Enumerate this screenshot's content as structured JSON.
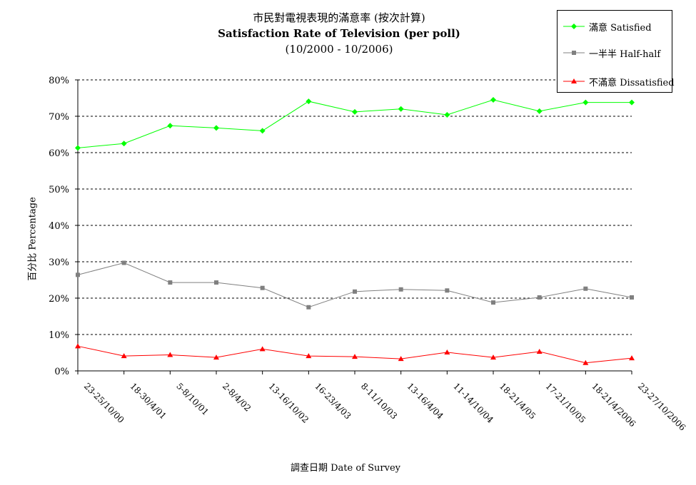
{
  "chart_data": {
    "type": "line",
    "title": "市民對電視表現的滿意率 (按次計算)",
    "subtitle": "Satisfaction Rate of Television (per poll)",
    "period": "(10/2000 - 10/2006)",
    "xlabel": "調查日期 Date of Survey",
    "ylabel": "百分比 Percentage",
    "ylim": [
      0,
      80
    ],
    "yticks": [
      "0%",
      "10%",
      "20%",
      "30%",
      "40%",
      "50%",
      "60%",
      "70%",
      "80%"
    ],
    "grid": "horizontal-dashed",
    "legend_position": "top-right",
    "categories": [
      "23-25/10/00",
      "18-30/4/01",
      "5-8/10/01",
      "2-8/4/02",
      "13-16/10/02",
      "16-23/4/03",
      "8-11/10/03",
      "13-16/4/04",
      "11-14/10/04",
      "18-21/4/05",
      "17-21/10/05",
      "18-21/4/2006",
      "23-27/10/2006"
    ],
    "series": [
      {
        "name": "滿意 Satisfied",
        "color": "#00ff00",
        "marker": "diamond",
        "values": [
          61.3,
          62.5,
          67.4,
          66.8,
          66.0,
          74.1,
          71.2,
          72.0,
          70.4,
          74.5,
          71.4,
          73.8,
          73.8
        ]
      },
      {
        "name": "一半半 Half-half",
        "color": "#808080",
        "marker": "square",
        "values": [
          26.4,
          29.7,
          24.3,
          24.3,
          22.8,
          17.5,
          21.8,
          22.4,
          22.1,
          18.8,
          20.2,
          22.6,
          20.2
        ]
      },
      {
        "name": "不滿意 Dissatisfied",
        "color": "#ff0000",
        "marker": "triangle",
        "values": [
          6.8,
          4.1,
          4.4,
          3.7,
          6.0,
          4.1,
          3.9,
          3.3,
          5.1,
          3.7,
          5.3,
          2.2,
          3.5
        ]
      }
    ]
  }
}
